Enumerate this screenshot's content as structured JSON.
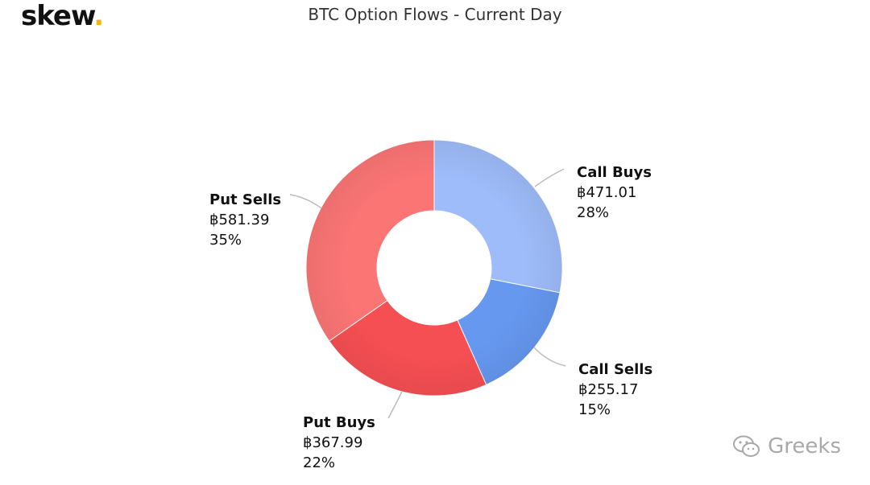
{
  "brand": {
    "logo_text": "skew",
    "logo_dot": ".",
    "accent": "#f2b705"
  },
  "watermark": {
    "text": "Greeks",
    "icon": "wechat-icon"
  },
  "chart_data": {
    "type": "pie",
    "variant": "donut",
    "title": "BTC Option Flows - Current Day",
    "currency_symbol": "฿",
    "slices": [
      {
        "name": "Call Buys",
        "value": 471.01,
        "value_label": "฿471.01",
        "percent_label": "28%",
        "color": "#9ebcfa"
      },
      {
        "name": "Call Sells",
        "value": 255.17,
        "value_label": "฿255.17",
        "percent_label": "15%",
        "color": "#6698f0"
      },
      {
        "name": "Put Buys",
        "value": 367.99,
        "value_label": "฿367.99",
        "percent_label": "22%",
        "color": "#f64f53"
      },
      {
        "name": "Put Sells",
        "value": 581.39,
        "value_label": "฿581.39",
        "percent_label": "35%",
        "color": "#fb7575"
      }
    ]
  }
}
